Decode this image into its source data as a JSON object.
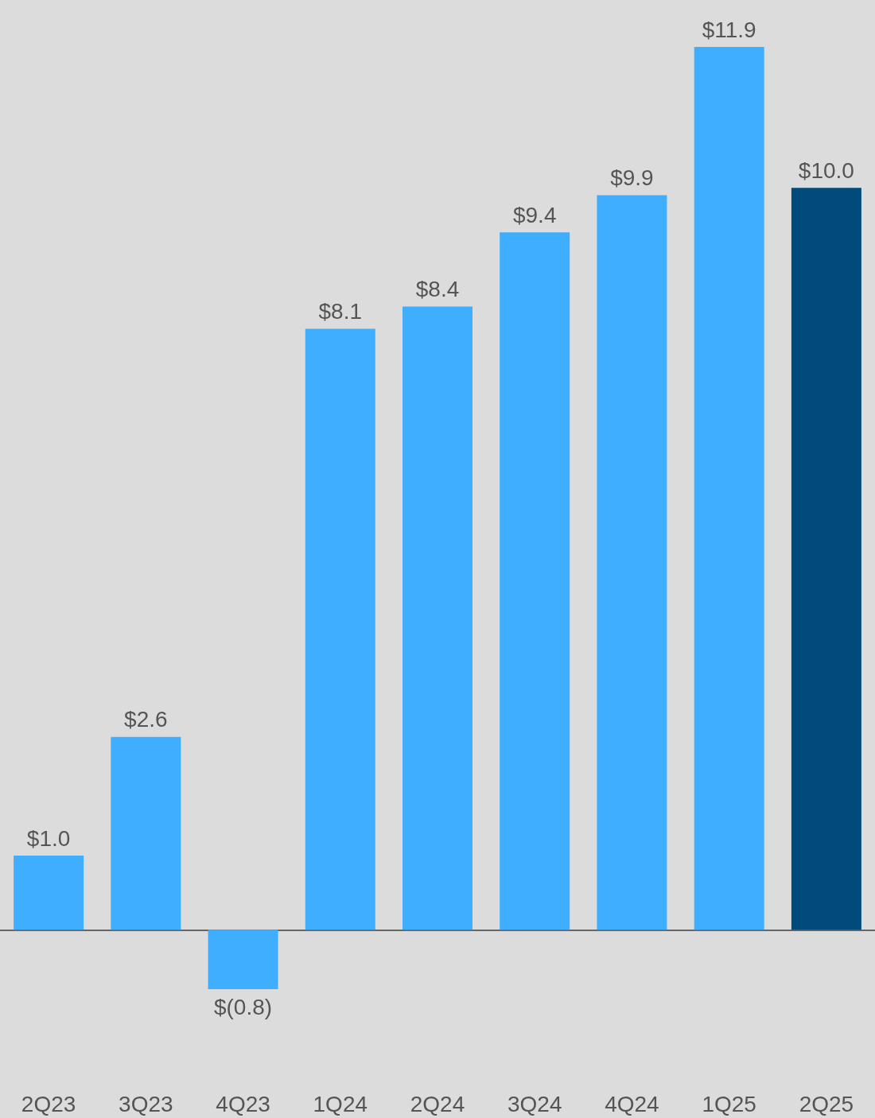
{
  "chart_data": {
    "type": "bar",
    "categories": [
      "2Q23",
      "3Q23",
      "4Q23",
      "1Q24",
      "2Q24",
      "3Q24",
      "4Q24",
      "1Q25",
      "2Q25"
    ],
    "values": [
      1.0,
      2.6,
      -0.8,
      8.1,
      8.4,
      9.4,
      9.9,
      11.9,
      10.0
    ],
    "colors": [
      "#40aefe",
      "#40aefe",
      "#40aefe",
      "#40aefe",
      "#40aefe",
      "#40aefe",
      "#40aefe",
      "#40aefe",
      "#004a7c"
    ],
    "value_labels": [
      "$1.0",
      "$2.6",
      "$(0.8)",
      "$8.1",
      "$8.4",
      "$9.4",
      "$9.9",
      "$11.9",
      "$10.0"
    ],
    "grid": false
  }
}
